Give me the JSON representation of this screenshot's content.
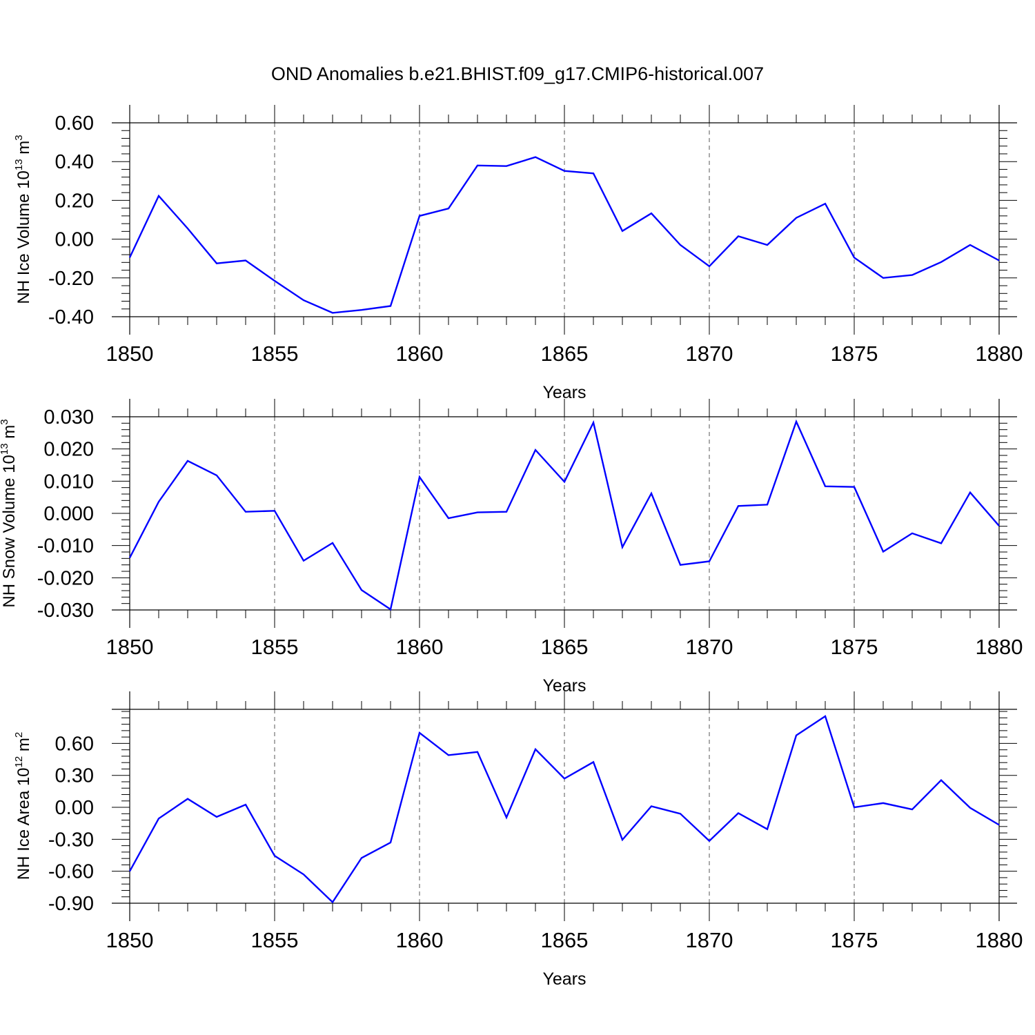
{
  "title": "OND Anomalies b.e21.BHIST.f09_g17.CMIP6-historical.007",
  "chart_data": [
    {
      "type": "line",
      "ylabel": "NH Ice Volume 10",
      "ylabel_exp": "13",
      "ylabel_unit": " m",
      "ylabel_unit_exp": "3",
      "xlabel": "Years",
      "color": "#0000ff",
      "xlim": [
        1850,
        1880
      ],
      "ylim": [
        -0.4,
        0.6
      ],
      "ytick_values": [
        -0.4,
        -0.2,
        0.0,
        0.2,
        0.4,
        0.6
      ],
      "ytick_labels": [
        "-0.40",
        "-0.20",
        "0.00",
        "0.20",
        "0.40",
        "0.60"
      ],
      "xtick_values": [
        1850,
        1855,
        1860,
        1865,
        1870,
        1875,
        1880
      ],
      "xtick_labels": [
        "1850",
        "1855",
        "1860",
        "1865",
        "1870",
        "1875",
        "1880"
      ],
      "x": [
        1850,
        1851,
        1852,
        1853,
        1854,
        1855,
        1856,
        1857,
        1858,
        1859,
        1860,
        1861,
        1862,
        1863,
        1864,
        1865,
        1866,
        1867,
        1868,
        1869,
        1870,
        1871,
        1872,
        1873,
        1874,
        1875,
        1876,
        1877,
        1878,
        1879,
        1880
      ],
      "values": [
        -0.095,
        0.223,
        0.055,
        -0.125,
        -0.11,
        -0.215,
        -0.315,
        -0.38,
        -0.365,
        -0.345,
        0.12,
        0.158,
        0.38,
        0.377,
        0.423,
        0.352,
        0.339,
        0.042,
        0.133,
        -0.03,
        -0.14,
        0.015,
        -0.03,
        0.11,
        0.183,
        -0.095,
        -0.2,
        -0.185,
        -0.118,
        -0.03,
        -0.11
      ]
    },
    {
      "type": "line",
      "ylabel": "NH Snow Volume 10",
      "ylabel_exp": "13",
      "ylabel_unit": " m",
      "ylabel_unit_exp": "3",
      "xlabel": "Years",
      "color": "#0000ff",
      "xlim": [
        1850,
        1880
      ],
      "ylim": [
        -0.03,
        0.03
      ],
      "ytick_values": [
        -0.03,
        -0.02,
        -0.01,
        0.0,
        0.01,
        0.02,
        0.03
      ],
      "ytick_labels": [
        "-0.030",
        "-0.020",
        "-0.010",
        "0.000",
        "0.010",
        "0.020",
        "0.030"
      ],
      "xtick_values": [
        1850,
        1855,
        1860,
        1865,
        1870,
        1875,
        1880
      ],
      "xtick_labels": [
        "1850",
        "1855",
        "1860",
        "1865",
        "1870",
        "1875",
        "1880"
      ],
      "x": [
        1850,
        1851,
        1852,
        1853,
        1854,
        1855,
        1856,
        1857,
        1858,
        1859,
        1860,
        1861,
        1862,
        1863,
        1864,
        1865,
        1866,
        1867,
        1868,
        1869,
        1870,
        1871,
        1872,
        1873,
        1874,
        1875,
        1876,
        1877,
        1878,
        1879,
        1880
      ],
      "values": [
        -0.0138,
        0.0036,
        0.0163,
        0.0118,
        0.0005,
        0.0008,
        -0.0147,
        -0.0092,
        -0.0238,
        -0.0298,
        0.0113,
        -0.0015,
        0.0003,
        0.0005,
        0.0197,
        0.0098,
        0.0282,
        -0.0105,
        0.0062,
        -0.016,
        -0.0149,
        0.0023,
        0.0027,
        0.0285,
        0.0084,
        0.0082,
        -0.0119,
        -0.0062,
        -0.0093,
        0.0065,
        -0.0039
      ]
    },
    {
      "type": "line",
      "ylabel": "NH Ice Area 10",
      "ylabel_exp": "12",
      "ylabel_unit": " m",
      "ylabel_unit_exp": "2",
      "xlabel": "Years",
      "color": "#0000ff",
      "xlim": [
        1850,
        1880
      ],
      "ylim": [
        -0.9,
        0.92
      ],
      "ytick_values": [
        -0.9,
        -0.6,
        -0.3,
        0.0,
        0.3,
        0.6
      ],
      "ytick_labels": [
        "-0.90",
        "-0.60",
        "-0.30",
        "0.00",
        "0.30",
        "0.60"
      ],
      "xtick_values": [
        1850,
        1855,
        1860,
        1865,
        1870,
        1875,
        1880
      ],
      "xtick_labels": [
        "1850",
        "1855",
        "1860",
        "1865",
        "1870",
        "1875",
        "1880"
      ],
      "x": [
        1850,
        1851,
        1852,
        1853,
        1854,
        1855,
        1856,
        1857,
        1858,
        1859,
        1860,
        1861,
        1862,
        1863,
        1864,
        1865,
        1866,
        1867,
        1868,
        1869,
        1870,
        1871,
        1872,
        1873,
        1874,
        1875,
        1876,
        1877,
        1878,
        1879,
        1880
      ],
      "values": [
        -0.6,
        -0.105,
        0.08,
        -0.09,
        0.025,
        -0.455,
        -0.63,
        -0.89,
        -0.475,
        -0.33,
        0.7,
        0.49,
        0.52,
        -0.095,
        0.545,
        0.27,
        0.425,
        -0.305,
        0.01,
        -0.06,
        -0.315,
        -0.055,
        -0.205,
        0.675,
        0.855,
        0.0,
        0.04,
        -0.02,
        0.255,
        -0.005,
        -0.165
      ]
    }
  ]
}
